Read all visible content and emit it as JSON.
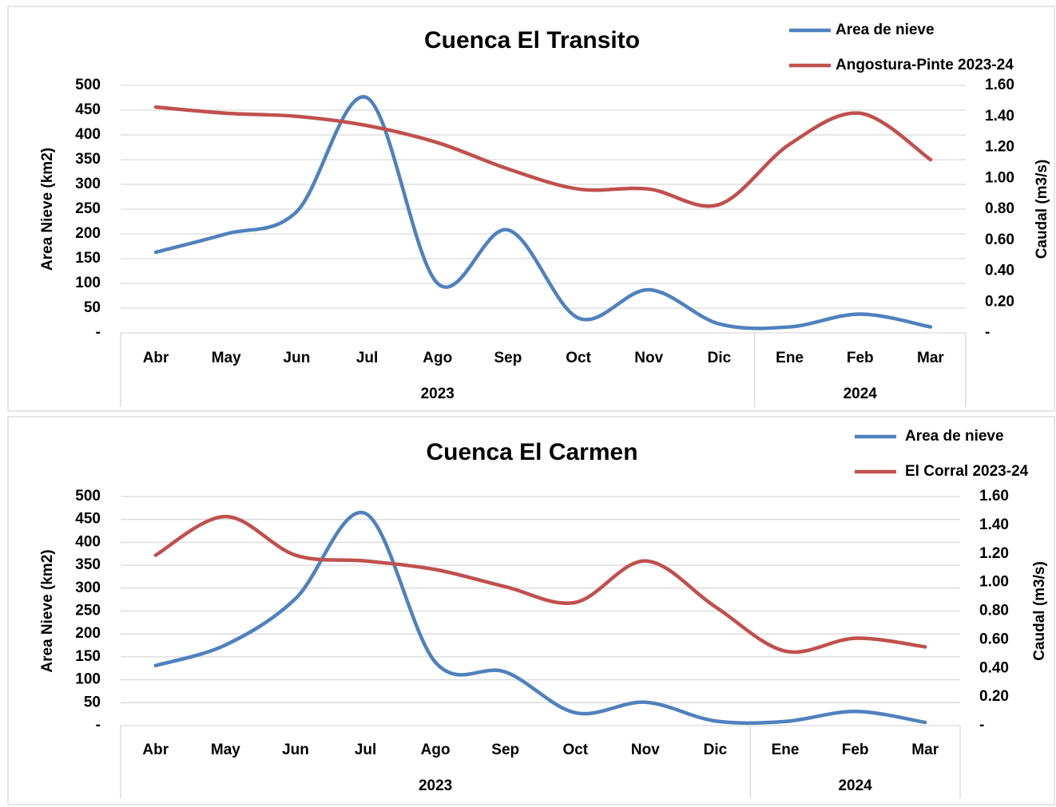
{
  "chart_data": [
    {
      "type": "line",
      "title": "Cuenca El Transito",
      "categories": [
        "Abr",
        "May",
        "Jun",
        "Jul",
        "Ago",
        "Sep",
        "Oct",
        "Nov",
        "Dic",
        "Ene",
        "Feb",
        "Mar"
      ],
      "category_groups": [
        {
          "label": "2023",
          "count": 9
        },
        {
          "label": "2024",
          "count": 3
        }
      ],
      "y_label": "Area Nieve (km2)",
      "y2_label": "Caudal (m3/s)",
      "ylim": [
        0,
        500
      ],
      "yticks": [
        {
          "value": 0,
          "label": "-"
        },
        50,
        100,
        150,
        200,
        250,
        300,
        350,
        400,
        450,
        500
      ],
      "y2lim": [
        0,
        1.6
      ],
      "y2ticks": [
        {
          "value": 0,
          "label": "-"
        },
        {
          "value": 0.2,
          "label": "0.20"
        },
        {
          "value": 0.4,
          "label": "0.40"
        },
        {
          "value": 0.6,
          "label": "0.60"
        },
        {
          "value": 0.8,
          "label": "0.80"
        },
        {
          "value": 1.0,
          "label": "1.00"
        },
        {
          "value": 1.2,
          "label": "1.20"
        },
        {
          "value": 1.4,
          "label": "1.40"
        },
        {
          "value": 1.6,
          "label": "1.60"
        }
      ],
      "grid": true,
      "smooth": true,
      "legend": "top-right",
      "series": [
        {
          "name": "Area de nieve",
          "color": "#4f81bd",
          "values": [
            163,
            200,
            245,
            475,
            100,
            208,
            30,
            87,
            18,
            12,
            38,
            12
          ]
        },
        {
          "name": "Angostura-Pinte 2023-24",
          "color": "#c0504d",
          "axis": "y2",
          "values": [
            1.46,
            1.42,
            1.4,
            1.34,
            1.23,
            1.06,
            0.93,
            0.93,
            0.83,
            1.22,
            1.42,
            1.12
          ]
        }
      ]
    },
    {
      "type": "line",
      "title": "Cuenca El Carmen",
      "categories": [
        "Abr",
        "May",
        "Jun",
        "Jul",
        "Ago",
        "Sep",
        "Oct",
        "Nov",
        "Dic",
        "Ene",
        "Feb",
        "Mar"
      ],
      "category_groups": [
        {
          "label": "2023",
          "count": 9
        },
        {
          "label": "2024",
          "count": 3
        }
      ],
      "y_label": "Area Nieve (km2)",
      "y2_label": "Caudal (m3/s)",
      "ylim": [
        0,
        500
      ],
      "yticks": [
        {
          "value": 0,
          "label": "-"
        },
        50,
        100,
        150,
        200,
        250,
        300,
        350,
        400,
        450,
        500
      ],
      "y2lim": [
        0,
        1.6
      ],
      "y2ticks": [
        {
          "value": 0,
          "label": "-"
        },
        {
          "value": 0.2,
          "label": "0.20"
        },
        {
          "value": 0.4,
          "label": "0.40"
        },
        {
          "value": 0.6,
          "label": "0.60"
        },
        {
          "value": 0.8,
          "label": "0.80"
        },
        {
          "value": 1.0,
          "label": "1.00"
        },
        {
          "value": 1.2,
          "label": "1.20"
        },
        {
          "value": 1.4,
          "label": "1.40"
        },
        {
          "value": 1.6,
          "label": "1.60"
        }
      ],
      "grid": true,
      "smooth": true,
      "legend": "top-right",
      "series": [
        {
          "name": "Area de nieve",
          "color": "#4f81bd",
          "values": [
            131,
            176,
            277,
            463,
            138,
            117,
            28,
            51,
            10,
            9,
            31,
            7
          ]
        },
        {
          "name": "El Corral 2023-24",
          "color": "#c0504d",
          "axis": "y2",
          "values": [
            1.19,
            1.46,
            1.19,
            1.15,
            1.09,
            0.97,
            0.86,
            1.15,
            0.83,
            0.52,
            0.61,
            0.55
          ]
        }
      ]
    }
  ]
}
